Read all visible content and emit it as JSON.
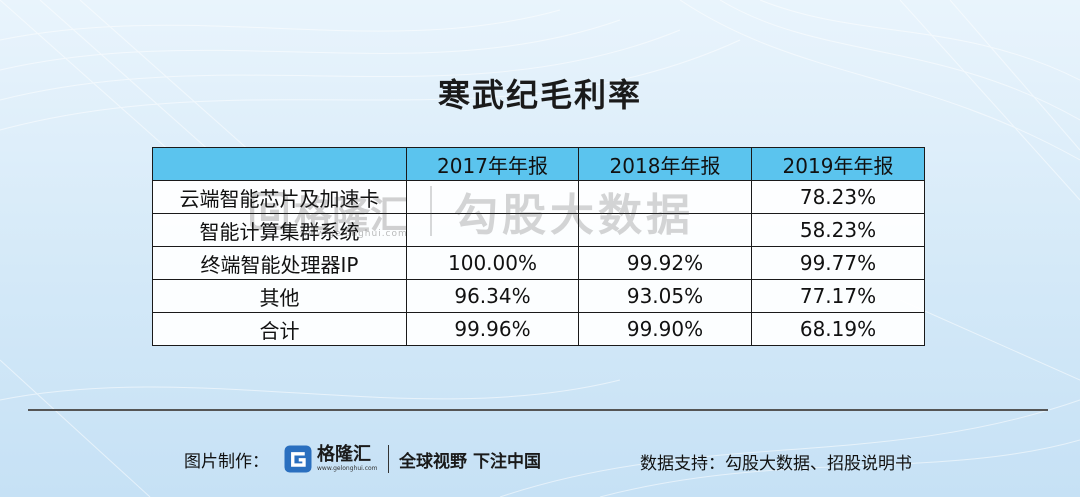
{
  "title": "寒武纪毛利率",
  "table": {
    "headers": [
      "",
      "2017年年报",
      "2018年年报",
      "2019年年报"
    ],
    "rows": [
      [
        "云端智能芯片及加速卡",
        "",
        "",
        "78.23%"
      ],
      [
        "智能计算集群系统",
        "",
        "",
        "58.23%"
      ],
      [
        "终端智能处理器IP",
        "100.00%",
        "99.92%",
        "99.77%"
      ],
      [
        "其他",
        "96.34%",
        "93.05%",
        "77.17%"
      ],
      [
        "合计",
        "99.96%",
        "99.90%",
        "68.19%"
      ]
    ]
  },
  "watermark": {
    "brand": "格隆汇",
    "url": "www.gelonghui.com",
    "text": "勾股大数据"
  },
  "footer": {
    "made_by_label": "图片制作：",
    "logo_name": "格隆汇",
    "logo_url": "www.gelonghui.com",
    "slogan": "全球视野 下注中国",
    "support": "数据支持：勾股大数据、招股说明书"
  },
  "colors": {
    "header_fill": "#5bc4ee",
    "background": "#d4e9f8",
    "logo_blue": "#2a6fbf"
  }
}
